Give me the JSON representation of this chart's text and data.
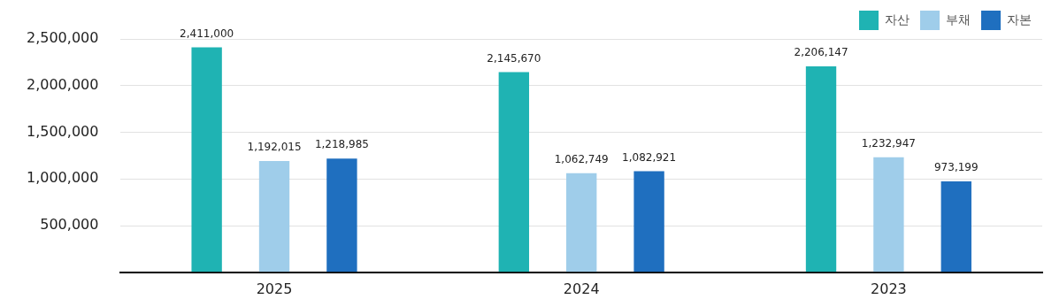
{
  "chart_data": {
    "type": "bar",
    "categories": [
      "2025",
      "2024",
      "2023"
    ],
    "series": [
      {
        "name": "자산",
        "color": "#1fb3b3",
        "values": [
          2411000,
          2145670,
          2206147
        ],
        "value_labels": [
          "2,411,000",
          "2,145,670",
          "2,206,147"
        ]
      },
      {
        "name": "부채",
        "color": "#9fcdea",
        "values": [
          1192015,
          1062749,
          1232947
        ],
        "value_labels": [
          "1,192,015",
          "1,062,749",
          "1,232,947"
        ]
      },
      {
        "name": "자본",
        "color": "#1f6fbf",
        "values": [
          1218985,
          1082921,
          973199
        ],
        "value_labels": [
          "1,218,985",
          "1,082,921",
          "973,199"
        ]
      }
    ],
    "ylim": [
      0,
      2500000
    ],
    "yticks": [
      {
        "value": 0,
        "label": null
      },
      {
        "value": 500000,
        "label": "500,000"
      },
      {
        "value": 1000000,
        "label": "1,000,000"
      },
      {
        "value": 1500000,
        "label": "1,500,000"
      },
      {
        "value": 2000000,
        "label": "2,000,000"
      },
      {
        "value": 2500000,
        "label": "2,500,000"
      }
    ],
    "grid": "y",
    "legend": "top right"
  }
}
